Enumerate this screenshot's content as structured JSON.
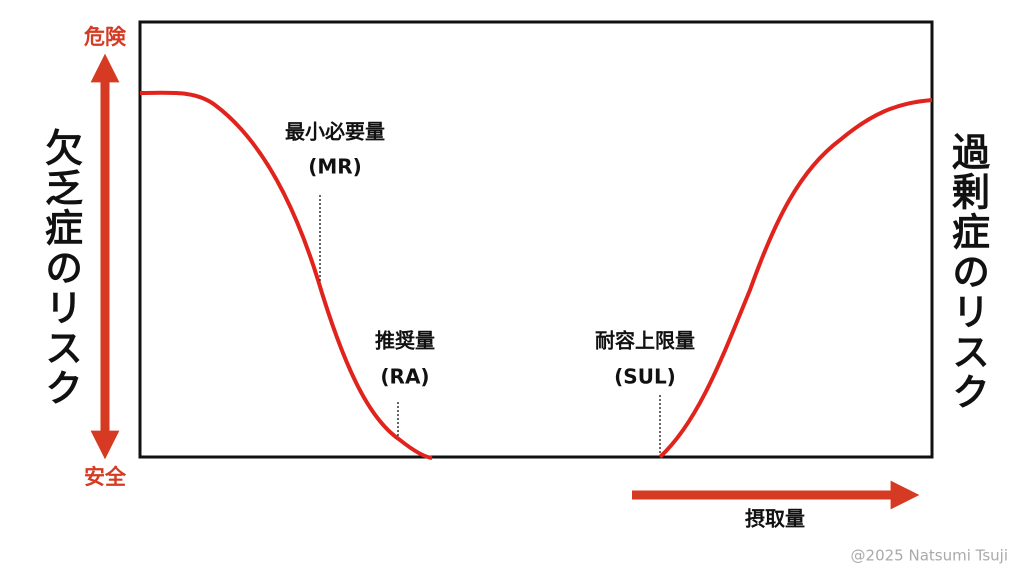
{
  "axis": {
    "top": "危険",
    "bottom": "安全",
    "left": "欠乏症のリスク",
    "right": "過剰症のリスク",
    "x": "摂取量"
  },
  "markers": [
    {
      "name": "最小必要量",
      "abbr": "(MR)"
    },
    {
      "name": "推奨量",
      "abbr": "(RA)"
    },
    {
      "name": "耐容上限量",
      "abbr": "(SUL)"
    }
  ],
  "credit": "@2025 Natsumi Tsuji"
}
